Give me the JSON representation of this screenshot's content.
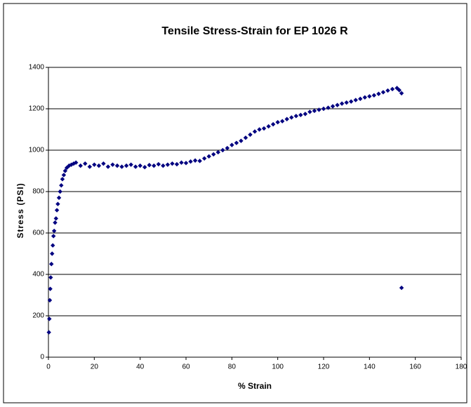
{
  "chart_data": {
    "type": "scatter",
    "title": "Tensile Stress-Strain for EP 1026 R",
    "x_label": "% Strain",
    "y_label": "Stress (PSI)",
    "color": "#000080",
    "grid": true,
    "xlim": [
      0,
      180
    ],
    "xticks": [
      0,
      20,
      40,
      60,
      80,
      100,
      120,
      140,
      160,
      180
    ],
    "ylim": [
      0,
      1400
    ],
    "yticks": [
      0,
      200,
      400,
      600,
      800,
      1000,
      1200,
      1400
    ],
    "x": [
      0.2,
      0.4,
      0.6,
      0.8,
      1,
      1.3,
      1.6,
      1.9,
      2.2,
      2.5,
      2.9,
      3.3,
      3.7,
      4.1,
      4.6,
      5.1,
      5.6,
      6.1,
      6.7,
      7.3,
      8,
      9,
      10,
      11,
      12,
      14,
      16,
      18,
      20,
      22,
      24,
      26,
      28,
      30,
      32,
      34,
      36,
      38,
      40,
      42,
      44,
      46,
      48,
      50,
      52,
      54,
      56,
      58,
      60,
      62,
      64,
      66,
      68,
      70,
      72,
      74,
      76,
      78,
      80,
      82,
      84,
      86,
      88,
      90,
      92,
      94,
      96,
      98,
      100,
      102,
      104,
      106,
      108,
      110,
      112,
      114,
      116,
      118,
      120,
      122,
      124,
      126,
      128,
      130,
      132,
      134,
      136,
      138,
      140,
      142,
      144,
      146,
      148,
      150,
      152,
      153,
      154,
      154
    ],
    "values": [
      120,
      185,
      275,
      330,
      385,
      450,
      500,
      540,
      585,
      610,
      650,
      670,
      710,
      740,
      770,
      800,
      830,
      860,
      880,
      900,
      915,
      925,
      930,
      935,
      940,
      925,
      935,
      920,
      930,
      925,
      935,
      920,
      930,
      925,
      920,
      925,
      930,
      920,
      925,
      918,
      928,
      925,
      932,
      925,
      930,
      935,
      932,
      940,
      938,
      945,
      950,
      948,
      960,
      970,
      980,
      990,
      1000,
      1010,
      1025,
      1035,
      1045,
      1060,
      1075,
      1090,
      1100,
      1105,
      1115,
      1125,
      1135,
      1140,
      1150,
      1158,
      1165,
      1170,
      1175,
      1185,
      1190,
      1195,
      1200,
      1205,
      1212,
      1218,
      1225,
      1230,
      1235,
      1242,
      1248,
      1255,
      1260,
      1265,
      1272,
      1280,
      1288,
      1295,
      1300,
      1290,
      1275,
      335
    ]
  }
}
